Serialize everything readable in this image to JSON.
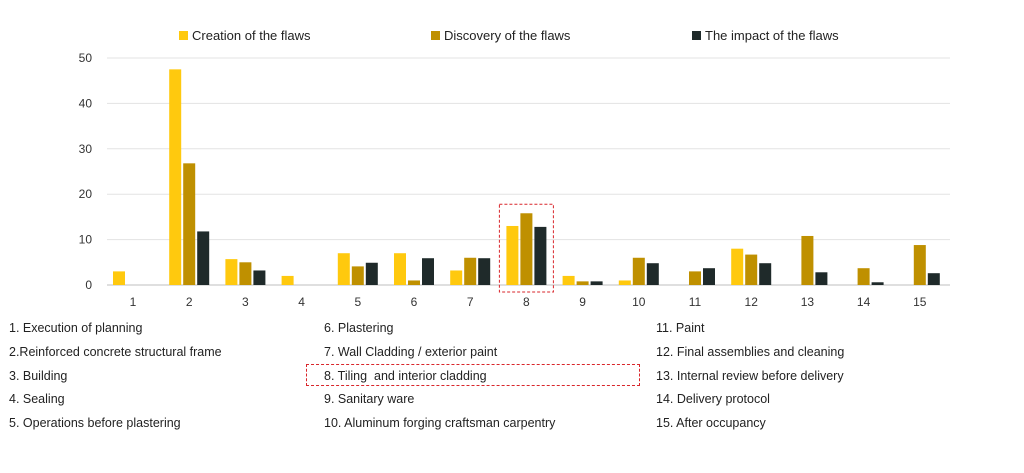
{
  "chart_data": {
    "type": "bar",
    "categories": [
      "1",
      "2",
      "3",
      "4",
      "5",
      "6",
      "7",
      "8",
      "9",
      "10",
      "11",
      "12",
      "13",
      "14",
      "15"
    ],
    "series": [
      {
        "name": "Creation of the flaws",
        "color": "#FFC90E",
        "values": [
          3,
          47.5,
          5.7,
          2,
          7,
          7,
          3.2,
          13,
          2,
          1,
          0,
          8,
          0,
          0,
          0
        ]
      },
      {
        "name": "Discovery of the flaws",
        "color": "#BF9000",
        "values": [
          0,
          26.8,
          5,
          0,
          4.1,
          1,
          6,
          15.8,
          0.8,
          6,
          3,
          6.7,
          10.8,
          3.7,
          8.8
        ]
      },
      {
        "name": "The impact of the flaws",
        "color": "#1F2A2A",
        "values": [
          0,
          11.8,
          3.2,
          0,
          4.9,
          5.9,
          5.9,
          12.8,
          0.8,
          4.8,
          3.7,
          4.8,
          2.8,
          0.6,
          2.6
        ]
      }
    ],
    "ylim": [
      0,
      50
    ],
    "yticks": [
      0,
      10,
      20,
      30,
      40,
      50
    ],
    "grid": true,
    "legend": "top",
    "highlight_category": "8",
    "category_key": [
      "1. Execution of planning",
      "2.Reinforced concrete structural frame",
      "3. Building",
      "4. Sealing",
      "5. Operations before plastering",
      "6. Plastering",
      "7. Wall Cladding / exterior paint",
      "8. Tiling  and interior cladding",
      "9. Sanitary ware",
      "10. Aluminum forging craftsman carpentry",
      "11. Paint",
      "12. Final assemblies and cleaning",
      "13. Internal review before delivery",
      "14. Delivery protocol",
      "15. After occupancy"
    ]
  }
}
